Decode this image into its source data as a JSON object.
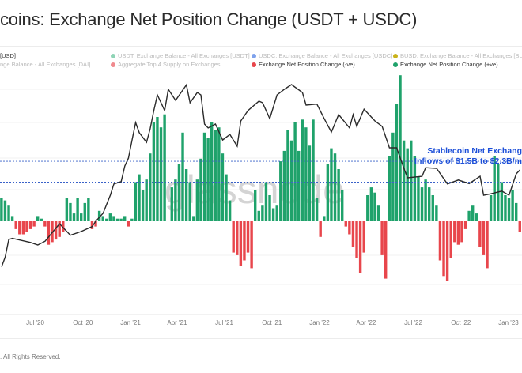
{
  "chart_data": {
    "type": "bar+line",
    "title": "coins: Exchange Net Position Change (USDT + USDC)",
    "legend": [
      {
        "label": "[USD]",
        "color": "#222222",
        "active": true
      },
      {
        "label": "nge Balance - All Exchanges [DAI]",
        "color": "",
        "active": false
      },
      {
        "label": "USDT: Exchange Balance - All Exchanges [USDT]",
        "color": "#2fb07a",
        "active": false
      },
      {
        "label": "Aggregate Top 4 Supply on Exchanges",
        "color": "#e8464c",
        "active": false
      },
      {
        "label": "USDC: Exchange Balance - All Exchanges [USDC]",
        "color": "#3a6fe0",
        "active": false
      },
      {
        "label": "Exchange Net Position Change (-ve)",
        "color": "#e8464c",
        "active": true
      },
      {
        "label": "BUSD: Exchange Balance - All Exchanges [BUSD",
        "color": "#c9b21a",
        "active": false
      },
      {
        "label": "Exchange Net Position Change (+ve)",
        "color": "#1fa26b",
        "active": true
      }
    ],
    "x_ticks": [
      "Jul '20",
      "Oct '20",
      "Jan '21",
      "Apr '21",
      "Jul '21",
      "Oct '21",
      "Jan '22",
      "Apr '22",
      "Jul '22",
      "Oct '22",
      "Jan '23"
    ],
    "x_tick_dates": [
      "2020-07-01",
      "2020-10-01",
      "2021-01-01",
      "2021-04-01",
      "2021-07-01",
      "2021-10-01",
      "2022-01-01",
      "2022-04-01",
      "2022-07-01",
      "2022-10-01",
      "2023-01-01"
    ],
    "xlim": [
      "2020-04-24",
      "2023-01-27"
    ],
    "grid": true,
    "colors": {
      "positive": "#1fa26b",
      "negative": "#e8464c",
      "price": "#222222",
      "threshold": "#3a62c9",
      "annotation": "#1d4fd8"
    },
    "net_change_unit": "USD billions (approx.)",
    "net_change": {
      "dates": [
        "2020-04-27",
        "2020-05-04",
        "2020-05-11",
        "2020-05-18",
        "2020-05-25",
        "2020-06-01",
        "2020-06-08",
        "2020-06-15",
        "2020-06-22",
        "2020-06-29",
        "2020-07-06",
        "2020-07-13",
        "2020-07-20",
        "2020-07-27",
        "2020-08-03",
        "2020-08-10",
        "2020-08-17",
        "2020-08-24",
        "2020-08-31",
        "2020-09-07",
        "2020-09-14",
        "2020-09-21",
        "2020-09-28",
        "2020-10-05",
        "2020-10-12",
        "2020-10-19",
        "2020-10-26",
        "2020-11-02",
        "2020-11-09",
        "2020-11-16",
        "2020-11-23",
        "2020-11-30",
        "2020-12-07",
        "2020-12-14",
        "2020-12-21",
        "2020-12-28",
        "2021-01-04",
        "2021-01-11",
        "2021-01-18",
        "2021-01-25",
        "2021-02-01",
        "2021-02-08",
        "2021-02-15",
        "2021-02-22",
        "2021-03-01",
        "2021-03-08",
        "2021-03-15",
        "2021-03-22",
        "2021-03-29",
        "2021-04-05",
        "2021-04-12",
        "2021-04-19",
        "2021-04-26",
        "2021-05-03",
        "2021-05-10",
        "2021-05-17",
        "2021-05-24",
        "2021-05-31",
        "2021-06-07",
        "2021-06-14",
        "2021-06-21",
        "2021-06-28",
        "2021-07-05",
        "2021-07-12",
        "2021-07-19",
        "2021-07-26",
        "2021-08-02",
        "2021-08-09",
        "2021-08-16",
        "2021-08-23",
        "2021-08-30",
        "2021-09-06",
        "2021-09-13",
        "2021-09-20",
        "2021-09-27",
        "2021-10-04",
        "2021-10-11",
        "2021-10-18",
        "2021-10-25",
        "2021-11-01",
        "2021-11-08",
        "2021-11-15",
        "2021-11-22",
        "2021-11-29",
        "2021-12-06",
        "2021-12-13",
        "2021-12-20",
        "2021-12-27",
        "2022-01-03",
        "2022-01-10",
        "2022-01-17",
        "2022-01-24",
        "2022-01-31",
        "2022-02-07",
        "2022-02-14",
        "2022-02-21",
        "2022-02-28",
        "2022-03-07",
        "2022-03-14",
        "2022-03-21",
        "2022-03-28",
        "2022-04-04",
        "2022-04-11",
        "2022-04-18",
        "2022-04-25",
        "2022-05-02",
        "2022-05-09",
        "2022-05-16",
        "2022-05-23",
        "2022-05-30",
        "2022-06-06",
        "2022-06-13",
        "2022-06-20",
        "2022-06-27",
        "2022-07-04",
        "2022-07-11",
        "2022-07-18",
        "2022-07-25",
        "2022-08-01",
        "2022-08-08",
        "2022-08-15",
        "2022-08-22",
        "2022-08-29",
        "2022-09-05",
        "2022-09-12",
        "2022-09-19",
        "2022-09-26",
        "2022-10-03",
        "2022-10-10",
        "2022-10-17",
        "2022-10-24",
        "2022-10-31",
        "2022-11-07",
        "2022-11-14",
        "2022-11-21",
        "2022-11-28",
        "2022-12-05",
        "2022-12-12",
        "2022-12-19",
        "2022-12-26",
        "2023-01-02",
        "2023-01-09",
        "2023-01-16",
        "2023-01-23"
      ],
      "values": [
        0.9,
        0.8,
        0.6,
        0.2,
        -0.3,
        -0.5,
        -0.5,
        -0.4,
        -0.3,
        -0.2,
        0.2,
        0.1,
        -0.2,
        -0.9,
        -0.8,
        -0.7,
        -0.6,
        -0.4,
        0.9,
        0.7,
        0.3,
        0.9,
        0.3,
        0.7,
        0.9,
        -0.3,
        -0.2,
        0.4,
        0.2,
        0.1,
        0.3,
        0.2,
        0.1,
        0.1,
        0.2,
        -0.2,
        0.1,
        1.5,
        1.8,
        1.2,
        1.6,
        2.6,
        3.8,
        4.0,
        3.6,
        4.1,
        0.0,
        1.3,
        1.6,
        2.2,
        3.4,
        2.0,
        1.5,
        0.2,
        1.6,
        2.4,
        3.4,
        3.2,
        3.8,
        3.5,
        3.6,
        2.6,
        1.8,
        0.8,
        -1.2,
        -1.3,
        -1.7,
        -1.5,
        -1.2,
        -1.8,
        1.2,
        0.4,
        0.6,
        1.5,
        1.0,
        0.5,
        0.6,
        2.3,
        2.7,
        3.5,
        3.1,
        3.8,
        2.7,
        3.9,
        3.6,
        2.9,
        3.9,
        0.9,
        -0.6,
        0.2,
        2.2,
        2.8,
        2.6,
        2.0,
        1.2,
        -0.2,
        -0.5,
        -1.0,
        -1.4,
        -2.0,
        -1.2,
        1.0,
        1.3,
        1.1,
        0.6,
        -1.3,
        -2.2,
        2.5,
        3.4,
        4.5,
        5.6,
        3.1,
        2.8,
        3.1,
        2.5,
        1.7,
        1.3,
        1.6,
        1.3,
        1.0,
        0.6,
        -1.5,
        -2.1,
        -2.3,
        -1.4,
        -0.8,
        -0.9,
        -0.8,
        -0.3,
        0.4,
        0.6,
        0.3,
        -1.0,
        -1.3,
        -1.8,
        1.0,
        2.5,
        2.2,
        1.5,
        1.0,
        0.9,
        1.2,
        0.7,
        -0.4
      ]
    },
    "price": {
      "scale": "log",
      "points": [
        [
          "2020-04-27",
          7000
        ],
        [
          "2020-05-04",
          7900
        ],
        [
          "2020-05-11",
          9850
        ],
        [
          "2020-05-18",
          10000
        ],
        [
          "2020-06-22",
          9500
        ],
        [
          "2020-07-06",
          9200
        ],
        [
          "2020-07-20",
          9650
        ],
        [
          "2020-08-17",
          12000
        ],
        [
          "2020-09-07",
          10400
        ],
        [
          "2020-09-28",
          10900
        ],
        [
          "2020-10-19",
          11600
        ],
        [
          "2020-10-26",
          12400
        ],
        [
          "2020-11-09",
          13700
        ],
        [
          "2020-11-23",
          17200
        ],
        [
          "2020-11-30",
          19800
        ],
        [
          "2020-12-14",
          20400
        ],
        [
          "2020-12-21",
          24800
        ],
        [
          "2020-12-28",
          27400
        ],
        [
          "2021-01-04",
          34400
        ],
        [
          "2021-01-11",
          42800
        ],
        [
          "2021-01-18",
          37700
        ],
        [
          "2021-02-01",
          33400
        ],
        [
          "2021-02-08",
          39600
        ],
        [
          "2021-02-15",
          49800
        ],
        [
          "2021-02-22",
          60600
        ],
        [
          "2021-03-08",
          49800
        ],
        [
          "2021-03-15",
          65000
        ],
        [
          "2021-03-29",
          56600
        ],
        [
          "2021-04-19",
          68700
        ],
        [
          "2021-04-26",
          54900
        ],
        [
          "2021-05-10",
          62500
        ],
        [
          "2021-05-17",
          60600
        ],
        [
          "2021-05-24",
          42000
        ],
        [
          "2021-05-31",
          40000
        ],
        [
          "2021-06-14",
          42000
        ],
        [
          "2021-06-28",
          34400
        ],
        [
          "2021-07-12",
          36900
        ],
        [
          "2021-07-26",
          31800
        ],
        [
          "2021-08-02",
          43700
        ],
        [
          "2021-08-16",
          49800
        ],
        [
          "2021-09-06",
          56000
        ],
        [
          "2021-09-13",
          54900
        ],
        [
          "2021-09-27",
          45000
        ],
        [
          "2021-10-11",
          60600
        ],
        [
          "2021-10-25",
          65000
        ],
        [
          "2021-11-08",
          69000
        ],
        [
          "2021-11-29",
          62500
        ],
        [
          "2021-12-06",
          53300
        ],
        [
          "2021-12-27",
          54000
        ],
        [
          "2022-01-10",
          45000
        ],
        [
          "2022-01-24",
          38000
        ],
        [
          "2022-02-07",
          47300
        ],
        [
          "2022-02-28",
          40000
        ],
        [
          "2022-03-07",
          47300
        ],
        [
          "2022-03-14",
          40800
        ],
        [
          "2022-03-28",
          50700
        ],
        [
          "2022-04-18",
          43700
        ],
        [
          "2022-05-02",
          40800
        ],
        [
          "2022-05-16",
          31200
        ],
        [
          "2022-05-30",
          31200
        ],
        [
          "2022-06-13",
          24100
        ],
        [
          "2022-06-20",
          21400
        ],
        [
          "2022-07-18",
          21800
        ],
        [
          "2022-07-25",
          24300
        ],
        [
          "2022-08-15",
          24100
        ],
        [
          "2022-09-05",
          19800
        ],
        [
          "2022-09-26",
          20800
        ],
        [
          "2022-10-17",
          19900
        ],
        [
          "2022-11-07",
          21800
        ],
        [
          "2022-11-14",
          17200
        ],
        [
          "2022-11-28",
          17500
        ],
        [
          "2022-12-19",
          18100
        ],
        [
          "2023-01-02",
          17200
        ],
        [
          "2023-01-16",
          22500
        ],
        [
          "2023-01-23",
          23600
        ]
      ]
    },
    "thresholds": [
      1.5,
      2.3
    ],
    "annotation": {
      "line1": "Stablecoin Net Exchang",
      "line2": "Inflows of $1.5B to $2.3B/m"
    },
    "watermark": "glassnode"
  },
  "footer": {
    "text": ". All Rights Reserved."
  }
}
